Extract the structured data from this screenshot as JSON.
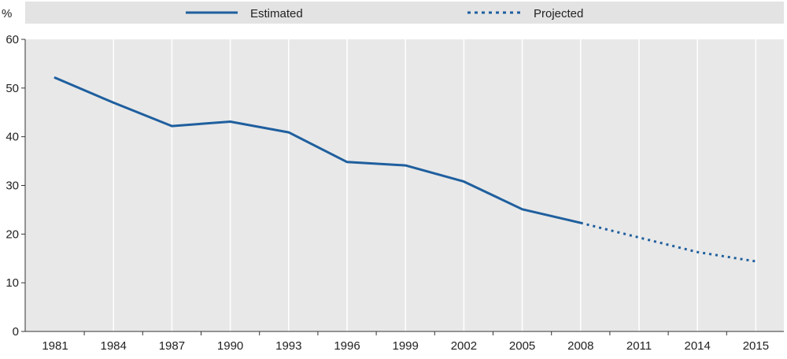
{
  "chart_data": {
    "type": "line",
    "ylabel": "%",
    "ylim": [
      0,
      60
    ],
    "yticks": [
      "0",
      "10",
      "20",
      "30",
      "40",
      "50",
      "60"
    ],
    "xticks": [
      "1981",
      "1984",
      "1987",
      "1990",
      "1993",
      "1996",
      "1999",
      "2002",
      "2005",
      "2008",
      "2011",
      "2014",
      "2015"
    ],
    "grid": "vertical",
    "legend_position": "top",
    "series": [
      {
        "name": "Estimated",
        "style": "solid",
        "color": "#1f5f9e",
        "points": [
          {
            "x": "1981",
            "y": 52.1
          },
          {
            "x": "1984",
            "y": 47.0
          },
          {
            "x": "1987",
            "y": 42.2
          },
          {
            "x": "1990",
            "y": 43.1
          },
          {
            "x": "1993",
            "y": 40.9
          },
          {
            "x": "1996",
            "y": 34.8
          },
          {
            "x": "1999",
            "y": 34.1
          },
          {
            "x": "2002",
            "y": 30.8
          },
          {
            "x": "2005",
            "y": 25.1
          },
          {
            "x": "2008",
            "y": 22.3
          }
        ]
      },
      {
        "name": "Projected",
        "style": "dotted",
        "color": "#1f5f9e",
        "points": [
          {
            "x": "2008",
            "y": 22.3
          },
          {
            "x": "2011",
            "y": 19.3
          },
          {
            "x": "2014",
            "y": 16.3
          },
          {
            "x": "2015",
            "y": 14.4
          }
        ]
      }
    ]
  }
}
